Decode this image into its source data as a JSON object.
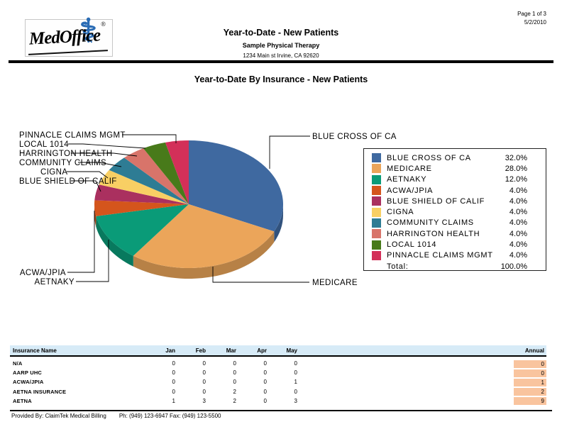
{
  "page": {
    "page_info": "Page 1 of 3",
    "date": "5/2/2010"
  },
  "logo": {
    "text": "MedOffice",
    "registered": "®",
    "caduceus_color": "#2a6cb5"
  },
  "header": {
    "title": "Year-to-Date - New Patients",
    "subtitle": "Sample Physical Therapy",
    "address": "1234 Main st Irvine, CA  92620"
  },
  "chart_title": "Year-to-Date By Insurance - New Patients",
  "chart_data": {
    "type": "pie",
    "title": "Year-to-Date By Insurance - New Patients",
    "style": "3d-pie",
    "start_angle_deg": 0,
    "direction": "clockwise",
    "legend_position": "right",
    "slices": [
      {
        "label": "BLUE CROSS OF CA",
        "value": 32.0,
        "color": "#3f69a0"
      },
      {
        "label": "MEDICARE",
        "value": 28.0,
        "color": "#eba55a"
      },
      {
        "label": "AETNAKY",
        "value": 12.0,
        "color": "#0a9b78"
      },
      {
        "label": "ACWA/JPIA",
        "value": 4.0,
        "color": "#d4551c"
      },
      {
        "label": "BLUE SHIELD OF CALIF",
        "value": 4.0,
        "color": "#aa305f"
      },
      {
        "label": "CIGNA",
        "value": 4.0,
        "color": "#f8cf64"
      },
      {
        "label": "COMMUNITY CLAIMS",
        "value": 4.0,
        "color": "#2e7c94"
      },
      {
        "label": "HARRINGTON HEALTH",
        "value": 4.0,
        "color": "#d8746a"
      },
      {
        "label": "LOCAL 1014",
        "value": 4.0,
        "color": "#487a1a"
      },
      {
        "label": "PINNACLE CLAIMS MGMT",
        "value": 4.0,
        "color": "#d33059"
      }
    ],
    "total_label": "Total:",
    "total_value": "100.0%"
  },
  "table": {
    "columns": [
      "Insurance Name",
      "Jan",
      "Feb",
      "Mar",
      "Apr",
      "May",
      "Annual"
    ],
    "rows": [
      {
        "name": "N/A",
        "values": [
          0,
          0,
          0,
          0,
          0
        ],
        "annual": 0
      },
      {
        "name": "AARP UHC",
        "values": [
          0,
          0,
          0,
          0,
          0
        ],
        "annual": 0
      },
      {
        "name": "ACWA/JPIA",
        "values": [
          0,
          0,
          0,
          0,
          1
        ],
        "annual": 1
      },
      {
        "name": "AETNA INSURANCE",
        "values": [
          0,
          0,
          2,
          0,
          0
        ],
        "annual": 2
      },
      {
        "name": "AETNA",
        "values": [
          1,
          3,
          2,
          0,
          3
        ],
        "annual": 9
      }
    ]
  },
  "footer": {
    "provided_by": "Provided By: ClaimTek Medical Billing",
    "contact": "Ph: (949) 123-6947 Fax: (949) 123-5500"
  },
  "colors": {
    "table_header_band": "#d7ebf7",
    "annual_cell": "#f9c49e",
    "rule": "#000000"
  }
}
